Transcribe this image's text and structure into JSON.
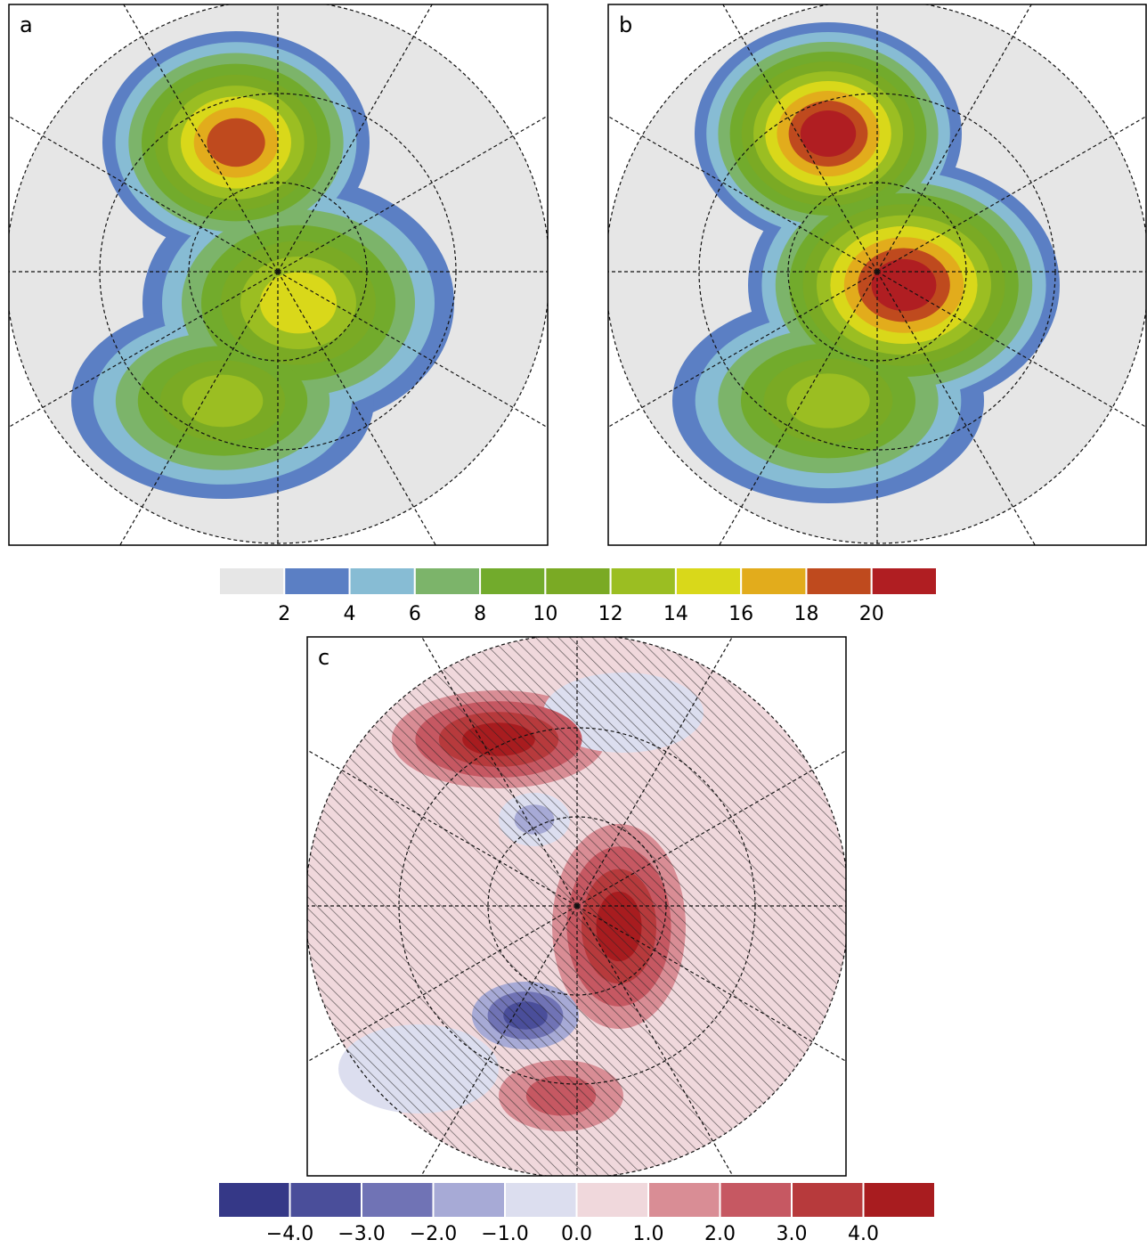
{
  "panels": [
    {
      "label": "a"
    },
    {
      "label": "b"
    },
    {
      "label": "c"
    }
  ],
  "colorbars": [
    {
      "colors": [
        "#e6e6e6",
        "#5b7fc4",
        "#87bcd4",
        "#7cb46a",
        "#72ab2c",
        "#7aaa24",
        "#9bbe22",
        "#d9d81a",
        "#e2ac1c",
        "#bf4a1e",
        "#b01e22"
      ],
      "lim": [
        0,
        22
      ],
      "ticks": [
        2,
        4,
        6,
        8,
        10,
        12,
        14,
        16,
        18,
        20
      ]
    },
    {
      "colors": [
        "#353887",
        "#4a4e9a",
        "#7073b5",
        "#a7aad6",
        "#dcdeef",
        "#f0d8dc",
        "#d98d95",
        "#c65862",
        "#b73a3c",
        "#a81c1f"
      ],
      "lim": [
        -5,
        5
      ],
      "ticks": [
        {
          "value": -4,
          "label": "−4.0"
        },
        {
          "value": -3,
          "label": "−3.0"
        },
        {
          "value": -2,
          "label": "−2.0"
        },
        {
          "value": -1,
          "label": "−1.0"
        },
        {
          "value": 0,
          "label": "0.0"
        },
        {
          "value": 1,
          "label": "1.0"
        },
        {
          "value": 2,
          "label": "2.0"
        },
        {
          "value": 3,
          "label": "3.0"
        },
        {
          "value": 4,
          "label": "4.0"
        }
      ]
    }
  ]
}
